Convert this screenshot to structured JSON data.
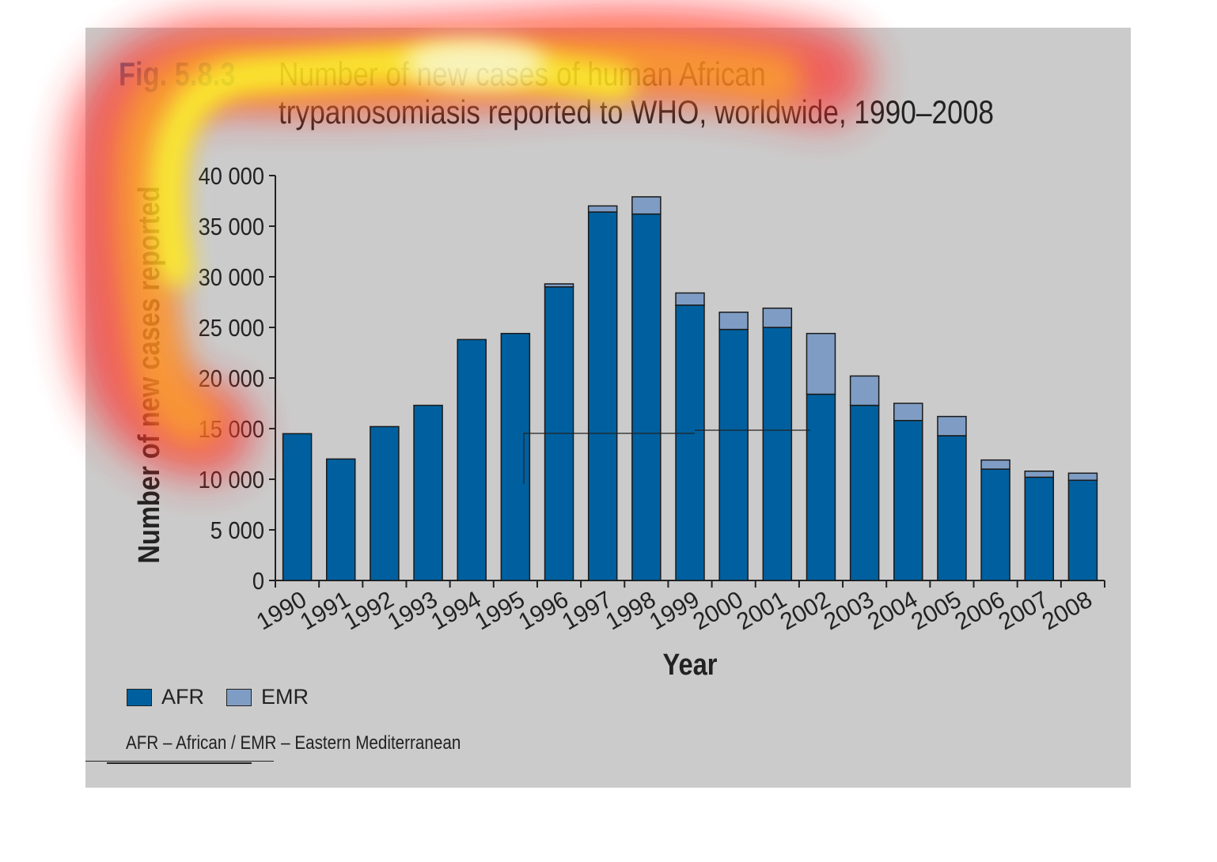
{
  "figure": {
    "label": "Fig. 5.8.3",
    "title_line1": "Number of new cases of human African",
    "title_line2": "trypanosomiasis reported to WHO, worldwide, 1990–2008"
  },
  "chart_data": {
    "type": "bar",
    "stacked": true,
    "title": "Number of new cases of human African trypanosomiasis reported to WHO, worldwide, 1990–2008",
    "xlabel": "Year",
    "ylabel": "Number of new cases reported",
    "ylim": [
      0,
      40000
    ],
    "yticks": [
      0,
      5000,
      10000,
      15000,
      20000,
      25000,
      30000,
      35000,
      40000
    ],
    "ytick_labels": [
      "0",
      "5 000",
      "10 000",
      "15 000",
      "20 000",
      "25 000",
      "30 000",
      "35 000",
      "40 000"
    ],
    "categories": [
      "1990",
      "1991",
      "1992",
      "1993",
      "1994",
      "1995",
      "1996",
      "1997",
      "1998",
      "1999",
      "2000",
      "2001",
      "2002",
      "2003",
      "2004",
      "2005",
      "2006",
      "2007",
      "2008"
    ],
    "series": [
      {
        "name": "AFR",
        "color": "#00609f",
        "values": [
          14500,
          12000,
          15200,
          17300,
          23800,
          24400,
          29000,
          36400,
          36200,
          27200,
          24800,
          25000,
          18400,
          17300,
          15800,
          14300,
          11000,
          10200,
          9900
        ]
      },
      {
        "name": "EMR",
        "color": "#7f9dc4",
        "values": [
          0,
          0,
          0,
          0,
          0,
          0,
          300,
          600,
          1700,
          1200,
          1700,
          1900,
          6000,
          2900,
          1700,
          1900,
          900,
          600,
          700
        ]
      }
    ],
    "grid": false,
    "legend_position": "bottom-left"
  },
  "legend": [
    {
      "label": "AFR",
      "color": "#00609f"
    },
    {
      "label": "EMR",
      "color": "#7f9dc4"
    }
  ],
  "footnote": "AFR – African / EMR – Eastern Mediterranean"
}
